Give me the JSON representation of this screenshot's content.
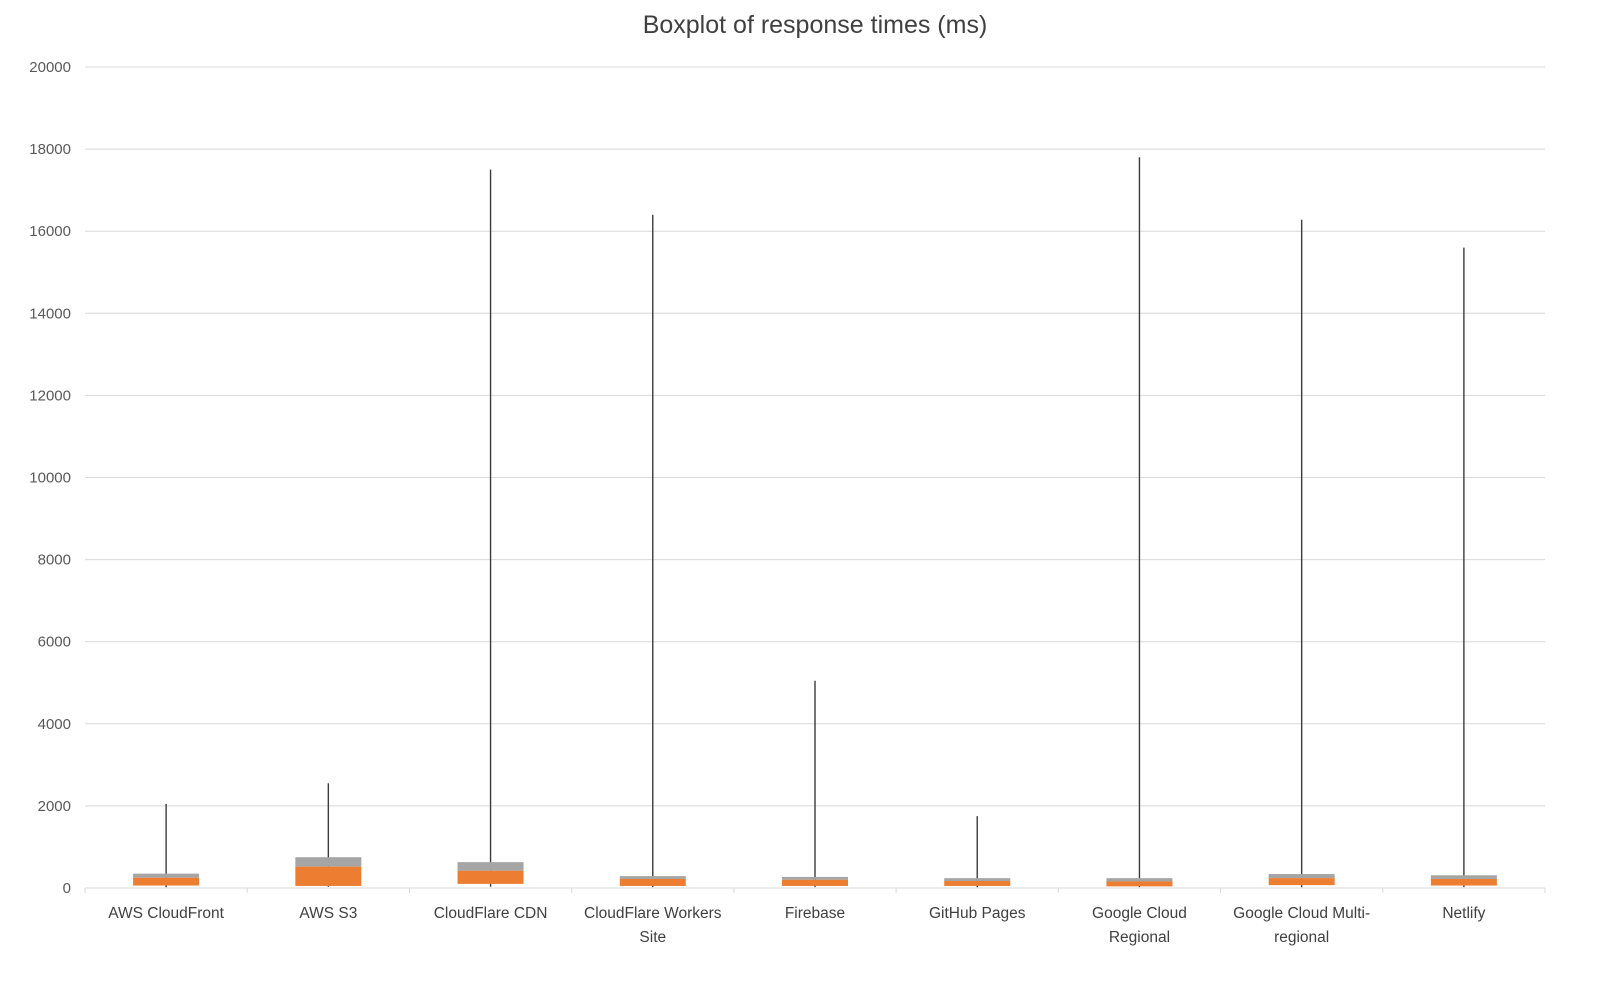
{
  "chart_data": {
    "type": "boxplot",
    "title": "Boxplot of response times (ms)",
    "xlabel": "",
    "ylabel": "",
    "ylim": [
      0,
      20000
    ],
    "ytick_step": 2000,
    "grid": true,
    "legend": "none",
    "categories": [
      "AWS CloudFront",
      "AWS S3",
      "CloudFlare CDN",
      "CloudFlare Workers Site",
      "Firebase",
      "GitHub Pages",
      "Google Cloud Regional",
      "Google Cloud Multi-regional",
      "Netlify"
    ],
    "boxes": [
      {
        "name": "AWS CloudFront",
        "label_lines": [
          "AWS CloudFront"
        ],
        "min": 20,
        "q1": 60,
        "median": 250,
        "q3": 350,
        "max": 2050
      },
      {
        "name": "AWS S3",
        "label_lines": [
          "AWS S3"
        ],
        "min": 30,
        "q1": 50,
        "median": 520,
        "q3": 750,
        "max": 2550
      },
      {
        "name": "CloudFlare CDN",
        "label_lines": [
          "CloudFlare CDN"
        ],
        "min": 30,
        "q1": 100,
        "median": 420,
        "q3": 630,
        "max": 17500
      },
      {
        "name": "CloudFlare Workers Site",
        "label_lines": [
          "CloudFlare Workers",
          "Site"
        ],
        "min": 20,
        "q1": 50,
        "median": 220,
        "q3": 290,
        "max": 16400
      },
      {
        "name": "Firebase",
        "label_lines": [
          "Firebase"
        ],
        "min": 20,
        "q1": 50,
        "median": 200,
        "q3": 270,
        "max": 5050
      },
      {
        "name": "GitHub Pages",
        "label_lines": [
          "GitHub Pages"
        ],
        "min": 20,
        "q1": 50,
        "median": 170,
        "q3": 240,
        "max": 1750
      },
      {
        "name": "Google Cloud Regional",
        "label_lines": [
          "Google Cloud",
          "Regional"
        ],
        "min": 20,
        "q1": 40,
        "median": 160,
        "q3": 240,
        "max": 17800
      },
      {
        "name": "Google Cloud Multi-regional",
        "label_lines": [
          "Google Cloud Multi-",
          "regional"
        ],
        "min": 20,
        "q1": 70,
        "median": 240,
        "q3": 340,
        "max": 16280
      },
      {
        "name": "Netlify",
        "label_lines": [
          "Netlify"
        ],
        "min": 20,
        "q1": 60,
        "median": 220,
        "q3": 310,
        "max": 15600
      }
    ],
    "colors": {
      "box_lower": "#ED7D31",
      "box_upper": "#A5A5A5",
      "whisker": "#3b3b3b",
      "gridline": "#D9D9D9",
      "axis_text": "#595959",
      "category_text": "#404040",
      "title_text": "#404040"
    }
  }
}
